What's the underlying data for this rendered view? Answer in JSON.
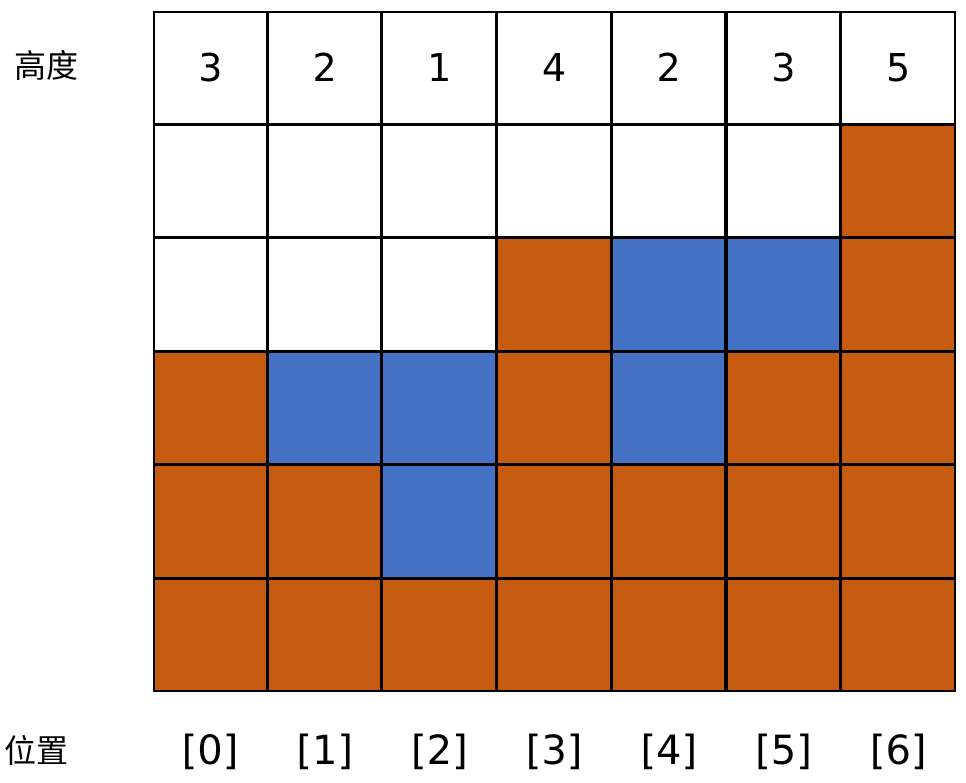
{
  "labels": {
    "height": "高度",
    "position": "位置"
  },
  "heights": [
    3,
    2,
    1,
    4,
    2,
    3,
    5
  ],
  "indices": [
    "[0]",
    "[1]",
    "[2]",
    "[3]",
    "[4]",
    "[5]",
    "[6]"
  ],
  "water_rows": [
    [
      0,
      0,
      0,
      0,
      0,
      0,
      0
    ],
    [
      0,
      0,
      0,
      0,
      1,
      1,
      0
    ],
    [
      0,
      1,
      1,
      0,
      1,
      0,
      0
    ],
    [
      0,
      0,
      1,
      0,
      0,
      0,
      0
    ],
    [
      0,
      0,
      0,
      0,
      0,
      0,
      0
    ]
  ],
  "colors": {
    "bar": "#C55A11",
    "water": "#4472C4",
    "empty": "#FFFFFF",
    "border": "#000000"
  }
}
